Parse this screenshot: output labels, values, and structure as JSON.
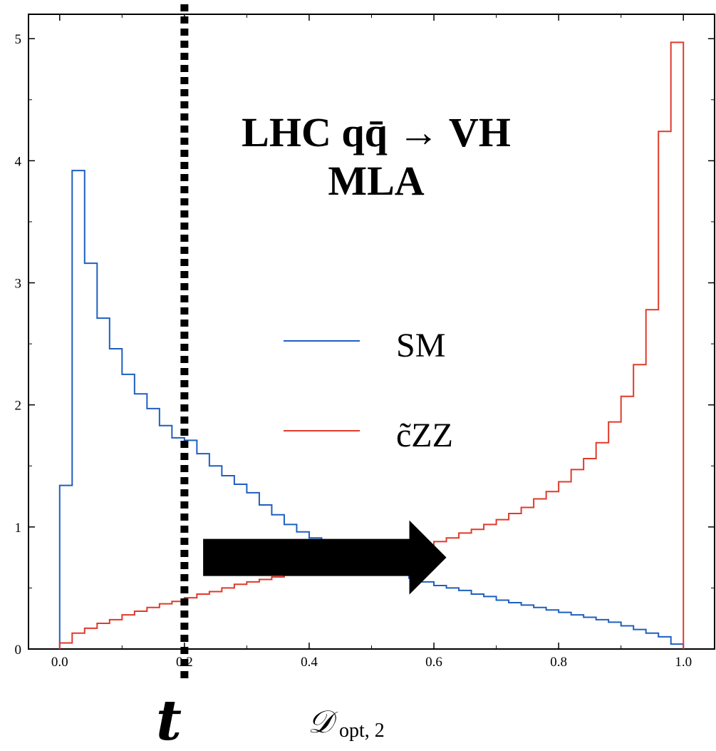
{
  "chart_data": {
    "type": "line",
    "title": [
      "LHC qq̄ → VH",
      "MLA"
    ],
    "xlabel": {
      "main": "𝒟",
      "sub": "opt, 2"
    },
    "ylabel": "",
    "xlim": [
      -0.05,
      1.05
    ],
    "ylim": [
      0,
      5.2
    ],
    "xticks": [
      "0.0",
      "0.2",
      "0.4",
      "0.6",
      "0.8",
      "1.0"
    ],
    "yticks": [
      "0",
      "1",
      "2",
      "3",
      "4",
      "5"
    ],
    "bin_width": 0.02,
    "series": [
      {
        "name": "SM",
        "color": "#1f5fbf",
        "values": [
          1.34,
          3.92,
          3.16,
          2.71,
          2.46,
          2.25,
          2.09,
          1.97,
          1.83,
          1.73,
          1.71,
          1.6,
          1.5,
          1.42,
          1.35,
          1.28,
          1.18,
          1.1,
          1.02,
          0.96,
          0.91,
          0.86,
          0.82,
          0.78,
          0.74,
          0.7,
          0.66,
          0.62,
          0.58,
          0.55,
          0.52,
          0.5,
          0.48,
          0.45,
          0.43,
          0.4,
          0.38,
          0.36,
          0.34,
          0.32,
          0.3,
          0.28,
          0.26,
          0.24,
          0.22,
          0.19,
          0.16,
          0.13,
          0.1,
          0.04
        ]
      },
      {
        "name": "c̃ZZ",
        "color": "#e03a2a",
        "values": [
          0.05,
          0.13,
          0.17,
          0.21,
          0.24,
          0.28,
          0.31,
          0.34,
          0.37,
          0.39,
          0.42,
          0.45,
          0.47,
          0.5,
          0.53,
          0.55,
          0.57,
          0.59,
          0.61,
          0.63,
          0.64,
          0.66,
          0.68,
          0.7,
          0.72,
          0.74,
          0.76,
          0.79,
          0.82,
          0.85,
          0.88,
          0.91,
          0.95,
          0.98,
          1.02,
          1.06,
          1.11,
          1.16,
          1.23,
          1.29,
          1.37,
          1.47,
          1.56,
          1.69,
          1.86,
          2.07,
          2.33,
          2.78,
          4.24,
          4.97
        ]
      }
    ],
    "threshold": {
      "x": 0.2,
      "label": "t",
      "style": "dotted"
    },
    "arrow": {
      "from": 0.23,
      "to": 0.62,
      "y": 0.75
    },
    "legend_placement": "center",
    "grid": false
  }
}
